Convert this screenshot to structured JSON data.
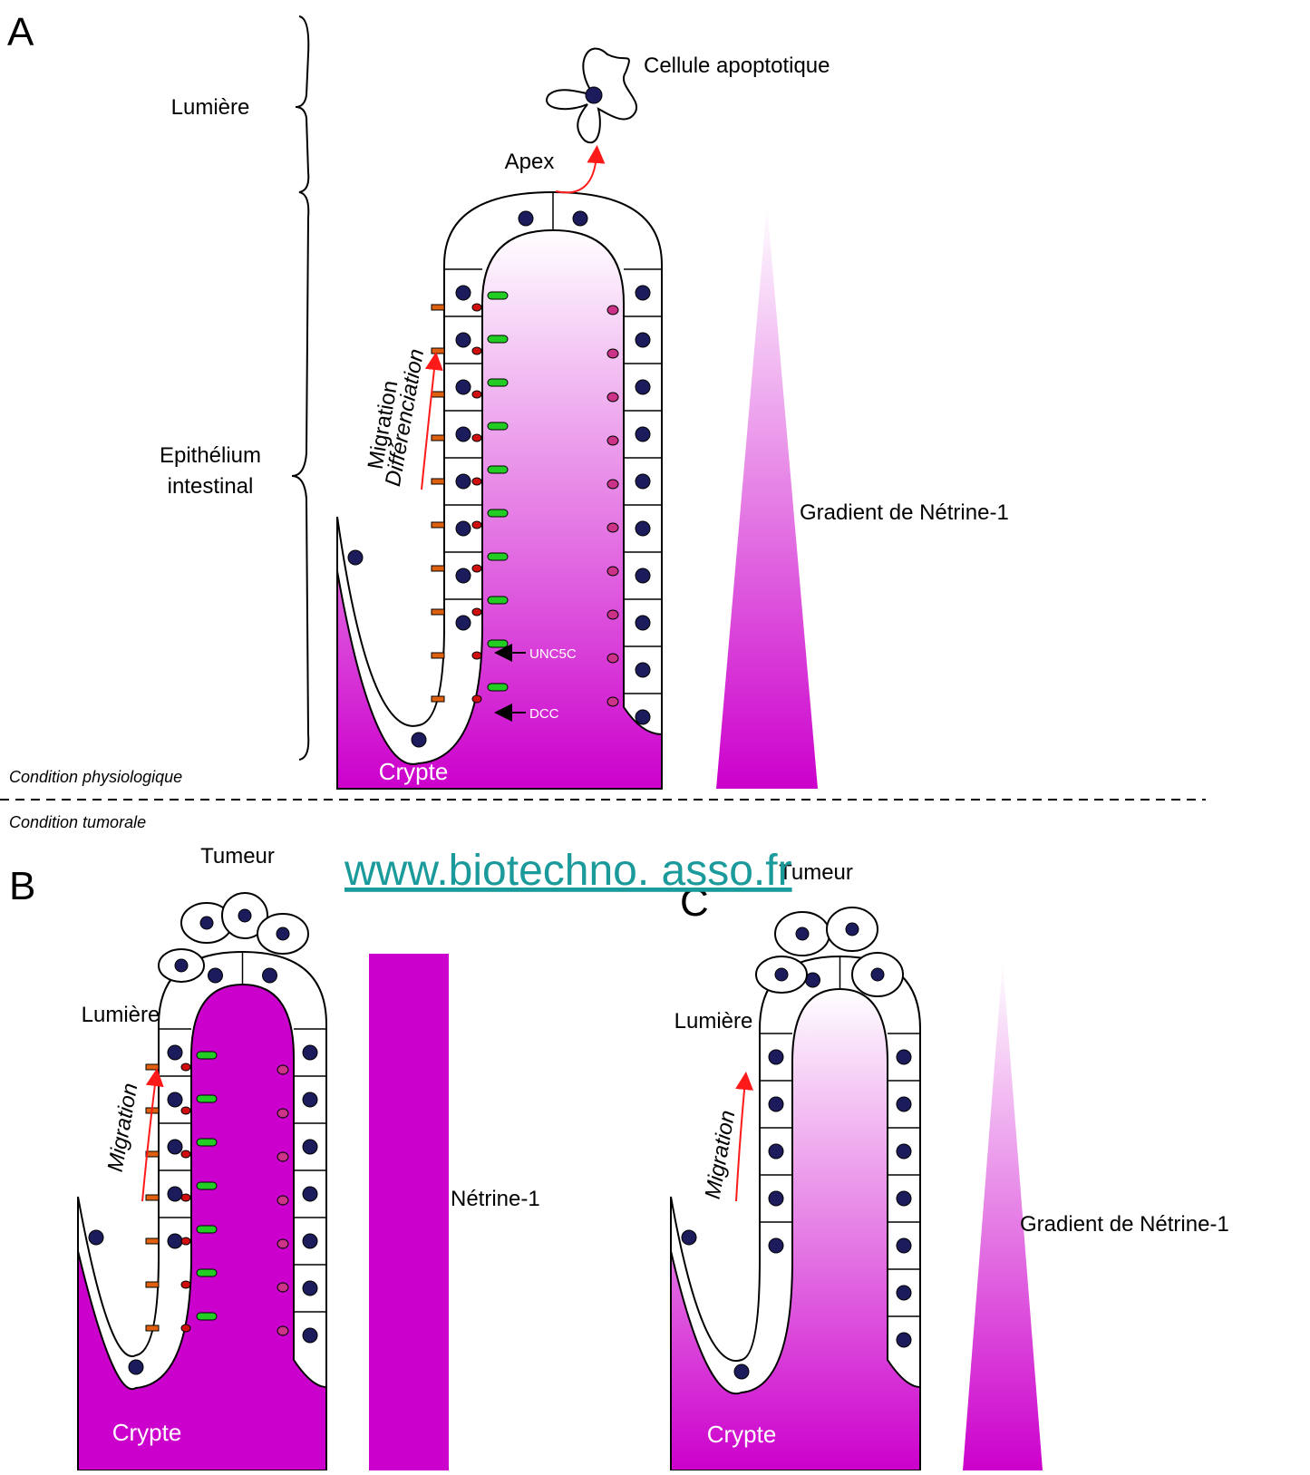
{
  "panel_a": {
    "letter": "A",
    "lumen": "Lumière",
    "apoptotic_cell": "Cellule apoptotique",
    "apex": "Apex",
    "epithelium": [
      "Epithélium",
      "intestinal"
    ],
    "migration": [
      "Migration",
      "Différenciation"
    ],
    "receptors": [
      "UNC5C",
      "DCC"
    ],
    "gradient": "Gradient de Nétrine-1",
    "crypt": "Crypte"
  },
  "conditions": [
    "Condition physiologique",
    "Condition tumorale"
  ],
  "panel_b": {
    "letter": "B",
    "tumor": "Tumeur",
    "lumen": "Lumière",
    "migration": "Migration",
    "netrin": "Nétrine-1",
    "crypt": "Crypte"
  },
  "watermark": "www.biotechno. asso.fr",
  "panel_c": {
    "letter": "C",
    "tumor": "Tumeur",
    "lumen": "Lumière",
    "migration": "Migration",
    "gradient": "Gradient de Nétrine-1",
    "crypt": "Crypte"
  }
}
